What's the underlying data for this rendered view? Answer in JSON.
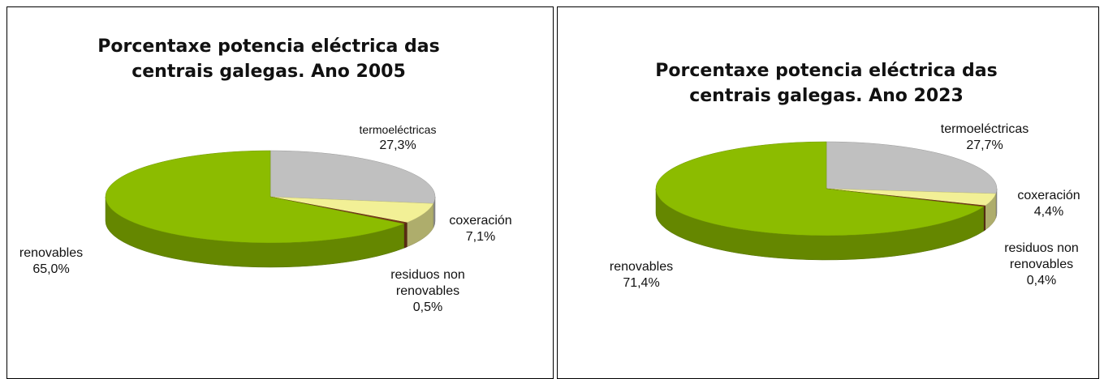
{
  "chart_data": [
    {
      "type": "pie3d",
      "title": "Porcentaxe potencia eléctrica das centrais galegas. Ano 2005",
      "categories": [
        "termoeléctricas",
        "coxeración",
        "residuos non renovables",
        "renovables"
      ],
      "values": [
        27.3,
        7.1,
        0.5,
        65.0
      ],
      "value_labels": [
        "27,3%",
        "7,1%",
        "0,5%",
        "65,0%"
      ],
      "colors": [
        "#c0c0c0",
        "#f2f096",
        "#7a3a1a",
        "#8cbc00"
      ]
    },
    {
      "type": "pie3d",
      "title": "Porcentaxe potencia eléctrica das centrais galegas. Ano 2023",
      "categories": [
        "termoeléctricas",
        "coxeración",
        "residuos non renovables",
        "renovables"
      ],
      "values": [
        27.7,
        4.4,
        0.4,
        71.4
      ],
      "value_labels": [
        "27,7%",
        "4,4%",
        "0,4%",
        "71,4%"
      ],
      "colors": [
        "#c0c0c0",
        "#f2f096",
        "#7a3a1a",
        "#8cbc00"
      ]
    }
  ]
}
